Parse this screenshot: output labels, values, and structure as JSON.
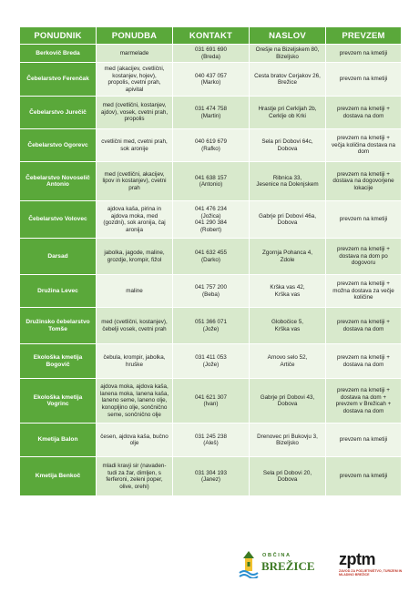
{
  "table": {
    "headers": [
      "PONUDNIK",
      "PONUDBA",
      "KONTAKT",
      "NASLOV",
      "PREVZEM"
    ],
    "rows": [
      {
        "ponudnik": "Berkovič Breda",
        "ponudba": "marmelade",
        "kontakt": "031 691 690\n(Breda)",
        "naslov": "Orešje na Bizeljskem 80,\nBizeljsko",
        "prevzem": "prevzem na kmetiji"
      },
      {
        "ponudnik": "Čebelarstvo Ferenčak",
        "ponudba": "med (akacijev, cvetlični,\nkostanjev, hojev),\npropolis, cvetni prah,\napivital",
        "kontakt": "040 437 057\n(Marko)",
        "naslov": "Cesta bratov Cerjakov 26,\nBrežice",
        "prevzem": "prevzem na kmetiji"
      },
      {
        "ponudnik": "Čebelarstvo Jurečič",
        "ponudba": "med (cvetlični, kostanjev,\najdov), vosek, cvetni prah,\npropolis",
        "kontakt": "031 474 758\n(Martin)",
        "naslov": "Hrastje pri Cerkljah 2b,\nCerklje ob Krki",
        "prevzem": "prevzem na kmetiji +\ndostava na dom"
      },
      {
        "ponudnik": "Čebelarstvo Ogorevc",
        "ponudba": "cvetlični med, cvetni prah,\nsok aronije",
        "kontakt": "040 619 679\n(Rafko)",
        "naslov": "Sela pri Dobovi 64c,\nDobova",
        "prevzem": "prevzem na kmetiji +\nvečja količina dostava na\ndom"
      },
      {
        "ponudnik": "Čebelarstvo Novoselič\nAntonio",
        "ponudba": "med (cvetlični, akacijev,\nlipov in kostanjev), cvetni\nprah",
        "kontakt": "041 638 157\n(Antonio)",
        "naslov": "Ribnica 33,\nJesenice na Dolenjskem",
        "prevzem": "prevzem na kmetiji +\ndostava na dogovorjene\nlokacije"
      },
      {
        "ponudnik": "Čebelarstvo Volovec",
        "ponudba": "ajdova kaša, pirina in\najdova moka, med\n(gozdni), sok aronija, čaj\naronija",
        "kontakt": "041 476 234\n(Jožica)\n041 290 384\n(Robert)",
        "naslov": "Gabrje pri Dobovi 46a,\nDobova",
        "prevzem": "prevzem na kmetiji"
      },
      {
        "ponudnik": "Darsad",
        "ponudba": "jabolka, jagode, maline,\ngrozdje, krompir, fižol",
        "kontakt": "041 632 455\n(Darko)",
        "naslov": "Zgornja Pohanca 4,\nZdole",
        "prevzem": "prevzem na kmetiji +\ndostava na dom po\ndogovoru"
      },
      {
        "ponudnik": "Družina Levec",
        "ponudba": "maline",
        "kontakt": "041 757 200\n(Beba)",
        "naslov": "Krška vas 42,\nKrška vas",
        "prevzem": "prevzem na kmetiji +\nmožna dostava za večje\nkoličine"
      },
      {
        "ponudnik": "Družinsko čebelarstvo\nTomše",
        "ponudba": "med (cvetlični, kostanjev),\nčebelji vosek, cvetni prah",
        "kontakt": "051 366 071\n(Jože)",
        "naslov": "Globočice 5,\nKrška vas",
        "prevzem": "prevzem na kmetiji +\ndostava na dom"
      },
      {
        "ponudnik": "Ekološka kmetija\nBogovič",
        "ponudba": "čebula, krompir, jabolka,\nhruške",
        "kontakt": "031 411 053\n(Jože)",
        "naslov": "Arnovo selo 52,\nArtiče",
        "prevzem": "prevzem na kmetiji +\ndostava na dom"
      },
      {
        "ponudnik": "Ekološka kmetija\nVogrinc",
        "ponudba": "ajdova moka, ajdova kaša,\nlanena moka, lanena kaša,\nlaneno seme, laneno olje,\nkonopljino olje, sončnično\nseme, sončnično olje",
        "kontakt": "041 621 307\n(Ivan)",
        "naslov": "Gabrje pri Dobovi 43,\nDobova",
        "prevzem": "prevzem na kmetiji +\ndostava na dom +\nprevzem v Brežicah +\ndostava na dom"
      },
      {
        "ponudnik": "Kmetija Balon",
        "ponudba": "česen, ajdova kaša, bučno\nolje",
        "kontakt": "031 245 238\n(Aleš)",
        "naslov": "Drenovec pri Bukovju 3,\nBizeljsko",
        "prevzem": "prevzem na kmetiji"
      },
      {
        "ponudnik": "Kmetija Benkoč",
        "ponudba": "mladi kravji sir (navaden-\ntudi za žar, dimljen, s\nferferoni, zeleni poper,\nolive, orehi)",
        "kontakt": "031 304 193\n(Janez)",
        "naslov": "Sela pri Dobovi 20,\nDobova",
        "prevzem": "prevzem na kmetiji"
      }
    ]
  },
  "logos": {
    "obcina_small": "OBČINA",
    "obcina_big": "BREŽICE",
    "zptm_word": "zptm",
    "zptm_sub": "ZAVOD ZA PODJETNIŠTVO, TURIZEM IN MLADINO BREŽICE"
  }
}
